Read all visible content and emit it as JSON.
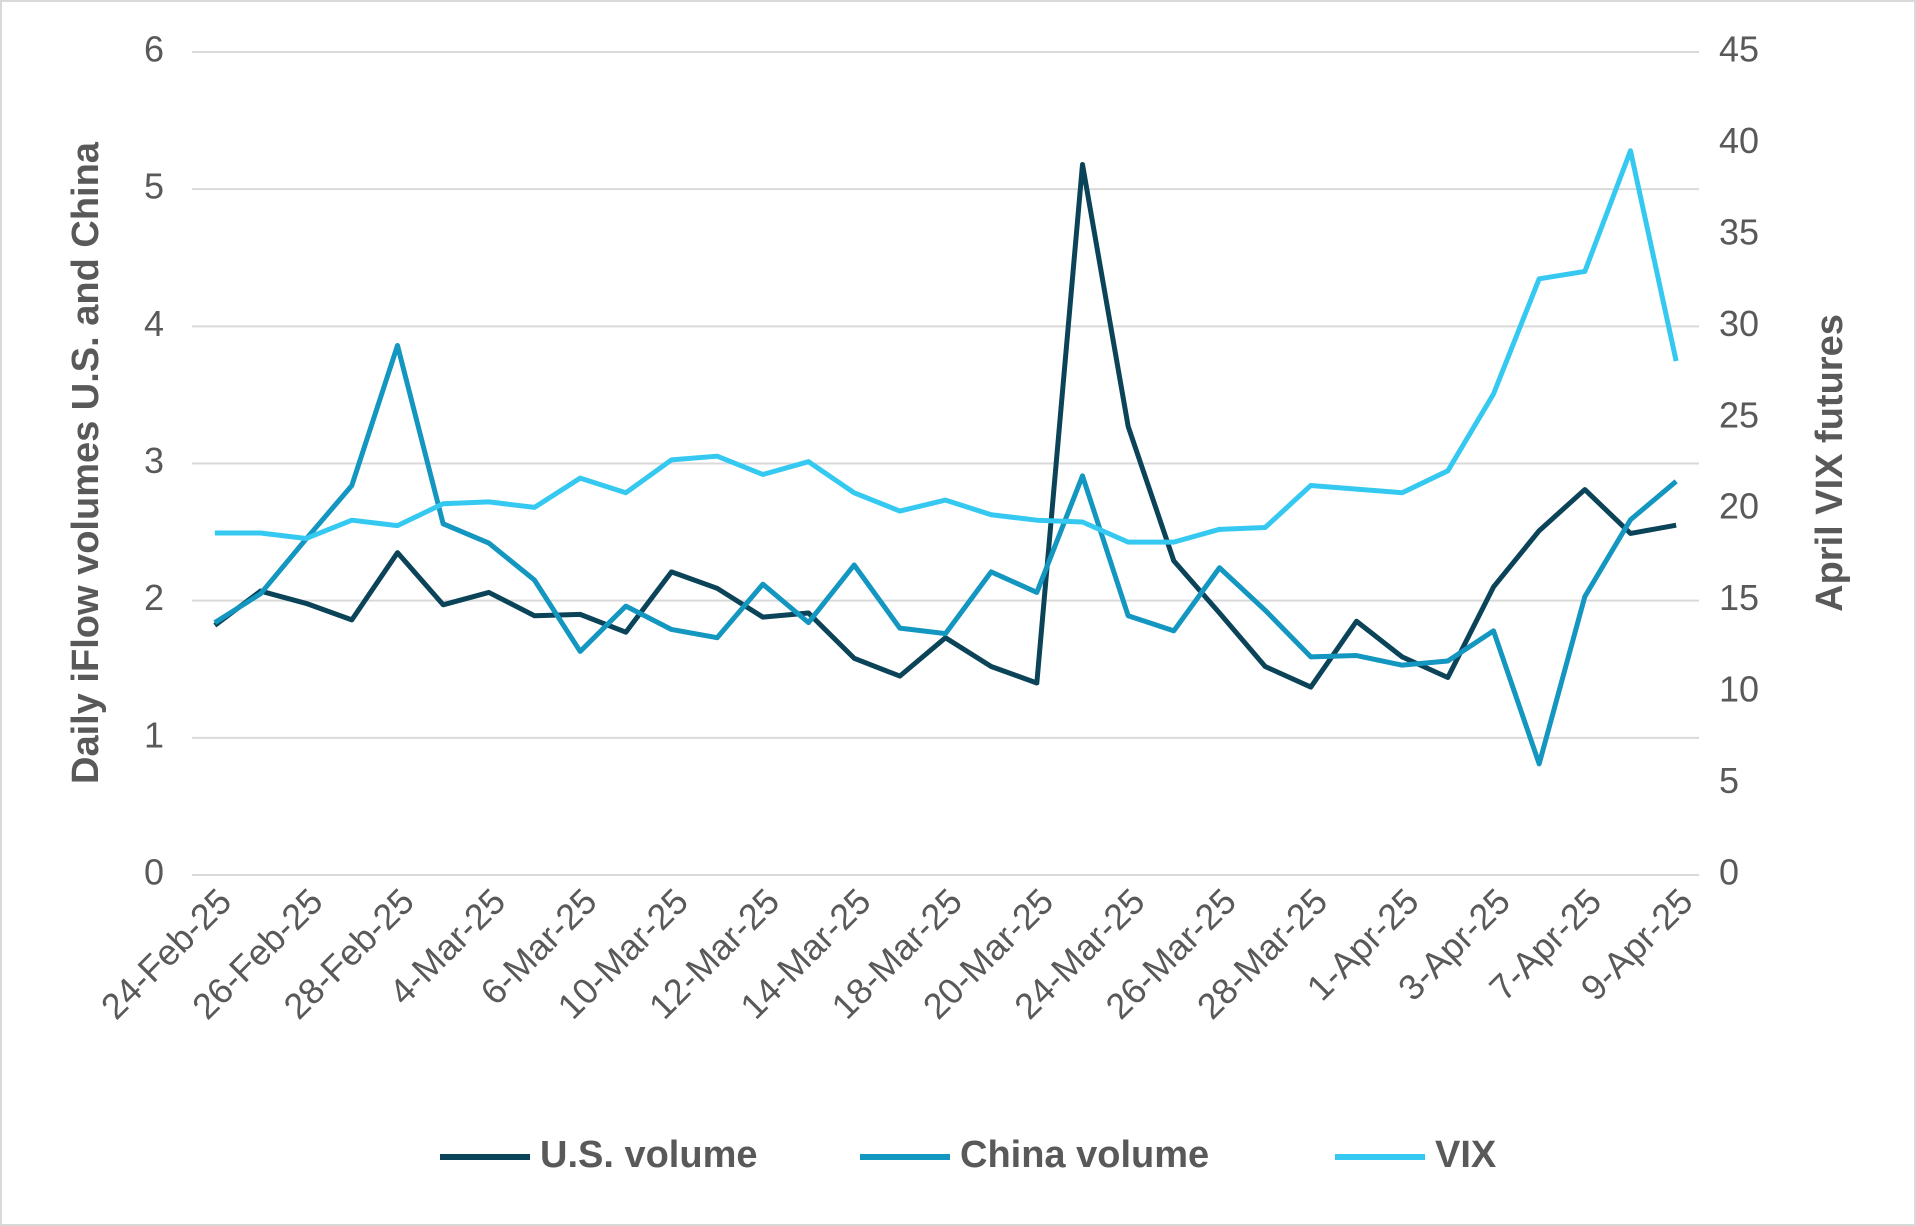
{
  "chart_data": {
    "type": "line",
    "ylabel": "Daily iFlow volumes U.S. and China",
    "y2label": "April VIX futures",
    "categories": [
      "24-Feb-25",
      null,
      "26-Feb-25",
      null,
      "28-Feb-25",
      null,
      "4-Mar-25",
      null,
      "6-Mar-25",
      null,
      "10-Mar-25",
      null,
      "12-Mar-25",
      null,
      "14-Mar-25",
      null,
      "18-Mar-25",
      null,
      "20-Mar-25",
      null,
      "24-Mar-25",
      null,
      "26-Mar-25",
      null,
      "28-Mar-25",
      null,
      "1-Apr-25",
      null,
      "3-Apr-25",
      null,
      "7-Apr-25",
      null,
      "9-Apr-25"
    ],
    "series": [
      {
        "name": "U.S. volume",
        "color": "#0b4458",
        "values": [
          1.82,
          2.07,
          1.98,
          1.86,
          2.35,
          1.97,
          2.06,
          1.89,
          1.9,
          1.77,
          2.21,
          2.09,
          1.88,
          1.91,
          1.58,
          1.45,
          1.73,
          1.52,
          1.4,
          5.18,
          3.27,
          2.29,
          1.91,
          1.52,
          1.37,
          1.85,
          1.59,
          1.44,
          2.1,
          2.51,
          2.81,
          2.49,
          2.55
        ]
      },
      {
        "name": "China volume",
        "color": "#1396c0",
        "values": [
          1.84,
          2.05,
          2.45,
          2.84,
          3.86,
          2.56,
          2.42,
          2.15,
          1.63,
          1.96,
          1.79,
          1.73,
          2.12,
          1.84,
          2.26,
          1.8,
          1.76,
          2.21,
          2.06,
          2.91,
          1.89,
          1.78,
          2.24,
          1.93,
          1.59,
          1.6,
          1.53,
          1.56,
          1.78,
          0.81,
          2.03,
          2.59,
          2.87
        ]
      },
      {
        "name": "VIX",
        "color": "#35c9f1",
        "axis": "y2",
        "values": [
          18.7,
          18.7,
          18.4,
          19.4,
          19.1,
          20.3,
          20.4,
          20.1,
          21.7,
          20.9,
          22.7,
          22.9,
          21.9,
          22.6,
          20.9,
          19.9,
          20.5,
          19.7,
          19.4,
          19.3,
          18.2,
          18.2,
          18.9,
          19.0,
          21.3,
          21.1,
          20.9,
          22.1,
          26.3,
          32.6,
          33.0,
          39.6,
          28.1
        ]
      }
    ],
    "ylim": [
      0,
      6
    ],
    "yticks": [
      0,
      1,
      2,
      3,
      4,
      5,
      6
    ],
    "y2lim": [
      0,
      45
    ],
    "y2ticks": [
      0,
      5,
      10,
      15,
      20,
      25,
      30,
      35,
      40,
      45
    ],
    "grid": true,
    "legend": "bottom"
  }
}
